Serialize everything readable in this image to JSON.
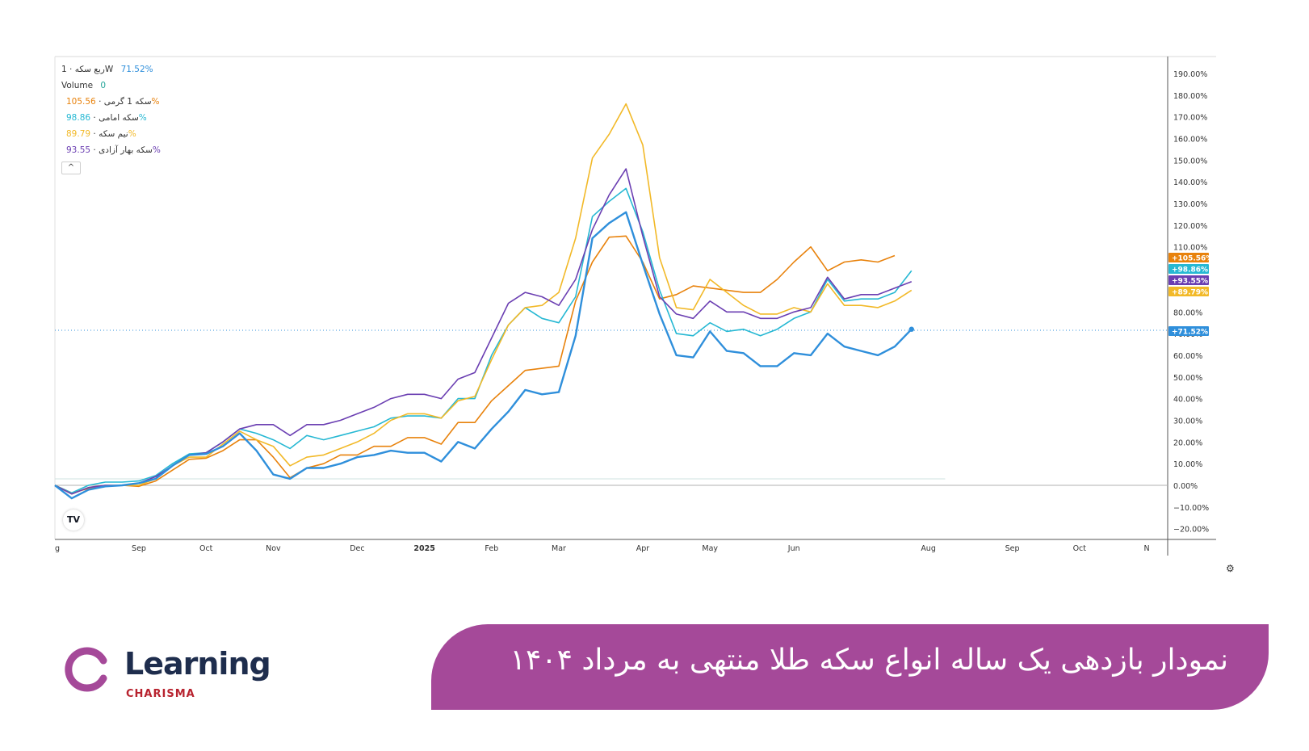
{
  "banner": {
    "title": "نمودار بازدهی یک ساله انواع سکه طلا منتهی به مرداد ۱۴۰۴"
  },
  "brand": {
    "word": "Learning",
    "sub": "CHARISMA",
    "colors": {
      "word": "#1e2d4d",
      "sub": "#b8232f",
      "ring": "#a54999",
      "banner": "#a54999"
    }
  },
  "legend": {
    "main_label": "ربع سکه · 1W",
    "main_value": "71.52%",
    "volume_label": "Volume",
    "volume_value": "0",
    "collapse_glyph": "^",
    "tv_logo": "TV"
  },
  "chart_data": {
    "type": "line",
    "x_ticks": [
      "g",
      "Sep",
      "Oct",
      "Nov",
      "Dec",
      "2025",
      "Feb",
      "Mar",
      "Apr",
      "May",
      "Jun",
      "Aug",
      "Sep",
      "Oct",
      "N"
    ],
    "x_tick_weeks": [
      0,
      5,
      9,
      13,
      18,
      22,
      26,
      30,
      35,
      39,
      44,
      52,
      57,
      61,
      65
    ],
    "ylim": [
      -25,
      198
    ],
    "y_ticks": [
      -20,
      -10,
      0,
      10,
      20,
      30,
      40,
      50,
      60,
      70,
      80,
      90,
      100,
      110,
      120,
      130,
      140,
      150,
      160,
      170,
      180,
      190
    ],
    "y_tick_labels": [
      "−20.00%",
      "−10.00%",
      "0.00%",
      "10.00%",
      "20.00%",
      "30.00%",
      "40.00%",
      "50.00%",
      "60.00%",
      "70.00%",
      "80.00%",
      "90.00%",
      "100.00%",
      "110.00%",
      "120.00%",
      "130.00%",
      "140.00%",
      "150.00%",
      "160.00%",
      "170.00%",
      "180.00%",
      "190.00%"
    ],
    "grid": false,
    "reference_line": 71.52,
    "series": [
      {
        "name": "سکه 1 گرمی",
        "color": "#e8820c",
        "end_label": "+105.56%",
        "legend_value": "105.56%",
        "values": [
          0,
          -3.5,
          -1.5,
          -0.5,
          0,
          -0.5,
          2,
          7,
          12,
          12.5,
          16,
          21,
          21,
          13,
          3.5,
          8,
          10,
          14,
          14,
          18,
          18,
          22,
          22,
          19,
          29,
          29,
          39,
          46,
          53,
          54,
          55,
          85,
          103,
          114.5,
          115,
          103,
          86,
          88,
          92,
          91,
          90,
          89,
          89,
          95,
          103,
          110,
          99,
          103,
          104,
          103,
          106
        ]
      },
      {
        "name": "سکه امامی",
        "color": "#26b8d3",
        "end_label": "+98.86%",
        "legend_value": "98.86%",
        "values": [
          0,
          -3.5,
          0,
          1.5,
          1.5,
          2,
          4.5,
          10,
          14.5,
          15,
          20,
          26,
          24,
          21,
          17,
          23,
          21,
          23,
          25,
          27,
          31,
          32,
          32,
          31,
          40,
          40,
          60,
          74,
          82,
          77,
          75,
          87,
          124,
          131,
          137,
          117,
          90,
          70,
          69,
          75,
          71,
          72,
          69,
          72,
          77,
          80,
          95,
          85,
          86,
          86,
          89,
          99
        ]
      },
      {
        "name": "نیم سکه",
        "color": "#f2b928",
        "end_label": "+89.79%",
        "legend_value": "89.79%",
        "values": [
          0,
          -4,
          -1,
          0,
          0,
          0,
          3,
          9,
          13,
          13,
          19,
          25,
          21,
          18,
          9,
          13,
          14,
          17,
          20,
          24,
          30,
          33,
          33,
          31,
          39,
          41,
          58,
          74,
          82,
          83,
          89,
          114,
          151,
          162,
          176,
          157,
          105,
          82,
          81,
          95,
          89,
          83,
          79,
          79,
          82,
          80,
          93,
          83,
          83,
          82,
          85,
          90
        ]
      },
      {
        "name": "سکه بهار آزادی",
        "color": "#6b3fb2",
        "end_label": "+93.55%",
        "legend_value": "93.55%",
        "values": [
          0,
          -4,
          -1,
          0,
          0,
          1,
          4,
          9,
          14,
          15,
          20,
          26,
          28,
          28,
          23,
          28,
          28,
          30,
          33,
          36,
          40,
          42,
          42,
          40,
          49,
          52,
          68,
          84,
          89,
          87,
          83,
          95,
          118,
          134,
          146,
          115,
          87,
          79,
          77,
          85,
          80,
          80,
          77,
          77,
          80,
          82,
          96,
          86,
          88,
          88,
          91,
          94
        ]
      },
      {
        "name": "ربع سکه",
        "color": "#2f8fdb",
        "end_label": "+71.52%",
        "legend_value": "71.52%",
        "values": [
          0,
          -6,
          -2,
          -0.5,
          0,
          1,
          3,
          9,
          14,
          14.5,
          18,
          24,
          16,
          5,
          3,
          8,
          8,
          10,
          13,
          14,
          16,
          15,
          15,
          11,
          20,
          17,
          26,
          34,
          44,
          42,
          43,
          69,
          114,
          121,
          126,
          102,
          79,
          60,
          59,
          71,
          62,
          61,
          55,
          55,
          61,
          60,
          70,
          64,
          62,
          60,
          64,
          72
        ]
      }
    ]
  }
}
